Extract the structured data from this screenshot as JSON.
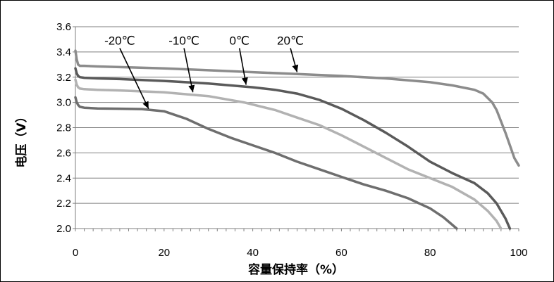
{
  "chart_data": {
    "type": "line",
    "xlabel": "容量保持率（%）",
    "ylabel": "电压（V）",
    "xlim": [
      0,
      100
    ],
    "ylim": [
      2.0,
      3.6
    ],
    "xticks": [
      "0",
      "20",
      "40",
      "60",
      "80",
      "100"
    ],
    "yticks": [
      "2.0",
      "2.2",
      "2.4",
      "2.6",
      "2.8",
      "3.0",
      "3.2",
      "3.4",
      "3.6"
    ],
    "grid": true,
    "series": [
      {
        "name": "20℃",
        "color": "#8c8c8c",
        "x": [
          0,
          0.3,
          0.6,
          1,
          2,
          5,
          10,
          20,
          30,
          40,
          50,
          60,
          70,
          80,
          85,
          90,
          92,
          94,
          95,
          96,
          97,
          98,
          99,
          100
        ],
        "y": [
          3.41,
          3.34,
          3.3,
          3.29,
          3.29,
          3.285,
          3.28,
          3.27,
          3.255,
          3.24,
          3.225,
          3.21,
          3.19,
          3.16,
          3.135,
          3.1,
          3.07,
          3.0,
          2.94,
          2.85,
          2.76,
          2.66,
          2.56,
          2.5
        ]
      },
      {
        "name": "0℃",
        "color": "#5a5a5a",
        "x": [
          0,
          0.3,
          0.6,
          1,
          2,
          5,
          10,
          20,
          30,
          40,
          45,
          50,
          55,
          60,
          65,
          70,
          75,
          80,
          85,
          90,
          93,
          95,
          96,
          97,
          98
        ],
        "y": [
          3.27,
          3.23,
          3.21,
          3.2,
          3.195,
          3.19,
          3.185,
          3.17,
          3.15,
          3.12,
          3.1,
          3.07,
          3.02,
          2.95,
          2.86,
          2.76,
          2.65,
          2.53,
          2.44,
          2.36,
          2.28,
          2.2,
          2.14,
          2.08,
          2.0
        ]
      },
      {
        "name": "-10℃",
        "color": "#b2b2b2",
        "x": [
          0,
          0.3,
          0.6,
          1,
          2,
          5,
          10,
          20,
          30,
          38,
          45,
          50,
          55,
          60,
          65,
          70,
          75,
          80,
          85,
          90,
          93,
          95,
          96
        ],
        "y": [
          3.18,
          3.14,
          3.12,
          3.11,
          3.105,
          3.1,
          3.095,
          3.08,
          3.05,
          3.0,
          2.94,
          2.88,
          2.82,
          2.74,
          2.65,
          2.56,
          2.47,
          2.4,
          2.33,
          2.23,
          2.14,
          2.06,
          2.0
        ]
      },
      {
        "name": "-20℃",
        "color": "#6e6e6e",
        "x": [
          0,
          0.3,
          0.6,
          1,
          2,
          5,
          10,
          15,
          20,
          25,
          30,
          35,
          40,
          45,
          50,
          55,
          60,
          65,
          70,
          75,
          80,
          83,
          85,
          86
        ],
        "y": [
          3.04,
          3.0,
          2.98,
          2.965,
          2.958,
          2.952,
          2.95,
          2.947,
          2.93,
          2.87,
          2.79,
          2.72,
          2.66,
          2.6,
          2.53,
          2.47,
          2.41,
          2.35,
          2.3,
          2.24,
          2.16,
          2.09,
          2.03,
          2.0
        ]
      }
    ],
    "annotations": [
      {
        "text": "-20℃",
        "arrow_from": [
          10,
          3.43
        ],
        "arrow_to": [
          16.5,
          2.95
        ]
      },
      {
        "text": "-10℃",
        "arrow_from": [
          24.5,
          3.43
        ],
        "arrow_to": [
          26.5,
          3.08
        ]
      },
      {
        "text": "0℃",
        "arrow_from": [
          37,
          3.43
        ],
        "arrow_to": [
          38.5,
          3.14
        ]
      },
      {
        "text": "20℃",
        "arrow_from": [
          48.5,
          3.43
        ],
        "arrow_to": [
          50,
          3.24
        ]
      }
    ]
  }
}
